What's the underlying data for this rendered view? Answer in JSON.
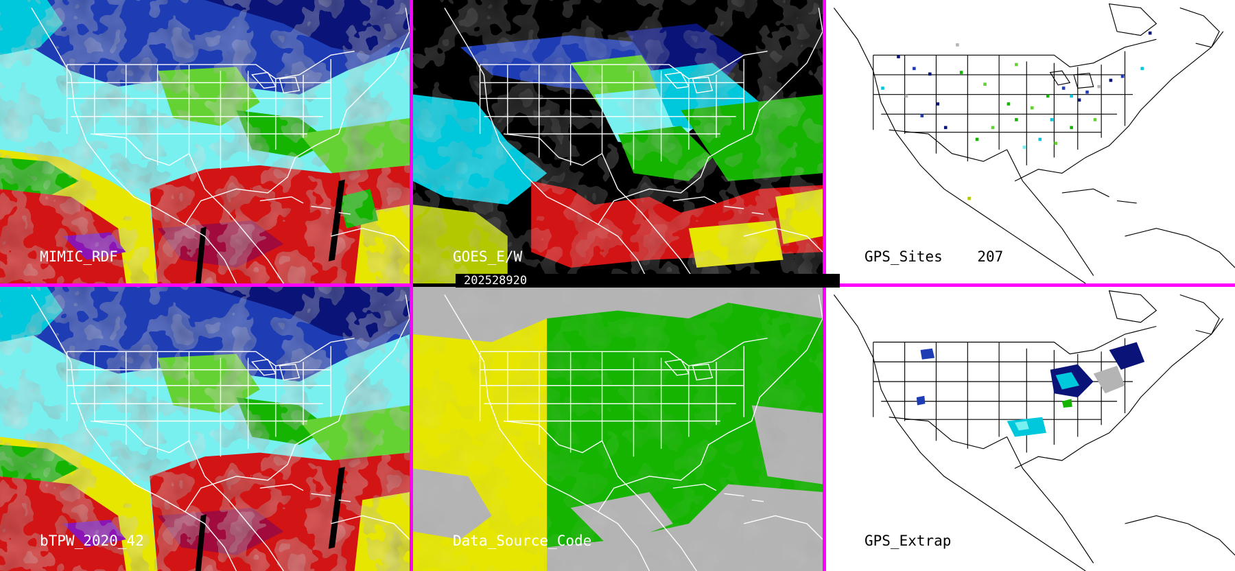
{
  "panels": {
    "p1": {
      "label": "MIMIC_RDF"
    },
    "p2": {
      "label": "GOES_E/W"
    },
    "p3": {
      "label": "GPS_Sites",
      "site_count": "207"
    },
    "p4": {
      "label": "bTPW_2020_42"
    },
    "p5": {
      "label": "Data_Source_Code"
    },
    "p6": {
      "label": "GPS_Extrap"
    }
  },
  "timestamp": "202528920",
  "colors": {
    "separator": "#ff00ff",
    "palette": [
      "#ffffff",
      "#b4b4b4",
      "#0a1478",
      "#1e3cb4",
      "#00c8dc",
      "#78f0f0",
      "#14b400",
      "#64d232",
      "#b4c800",
      "#e6e600",
      "#d21414",
      "#a00a3c",
      "#8c14b4"
    ]
  }
}
